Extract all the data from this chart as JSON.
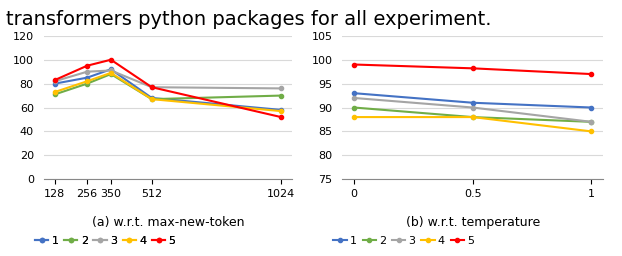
{
  "left": {
    "x": [
      128,
      256,
      350,
      512,
      1024
    ],
    "lines": {
      "1": [
        80,
        85,
        92,
        68,
        58
      ],
      "2": [
        71,
        80,
        88,
        67,
        70
      ],
      "3": [
        82,
        90,
        91,
        77,
        76
      ],
      "4": [
        73,
        82,
        89,
        67,
        57
      ],
      "5": [
        83,
        95,
        100,
        77,
        52
      ]
    },
    "colors": {
      "1": "#4472C4",
      "2": "#70AD47",
      "3": "#A5A5A5",
      "4": "#FFC000",
      "5": "#FF0000"
    },
    "ylim": [
      0,
      120
    ],
    "yticks": [
      0,
      20,
      40,
      60,
      80,
      100,
      120
    ],
    "caption": "(a) w.r.t. max-new-token"
  },
  "right": {
    "x": [
      0,
      0.5,
      1
    ],
    "lines": {
      "1": [
        93,
        91,
        90
      ],
      "2": [
        90,
        88,
        87
      ],
      "3": [
        92,
        90,
        87
      ],
      "4": [
        88,
        88,
        85
      ],
      "5": [
        99,
        98.2,
        97
      ]
    },
    "colors": {
      "1": "#4472C4",
      "2": "#70AD47",
      "3": "#A5A5A5",
      "4": "#FFC000",
      "5": "#FF0000"
    },
    "ylim": [
      75,
      105
    ],
    "yticks": [
      75,
      80,
      85,
      90,
      95,
      100,
      105
    ],
    "caption": "(b) w.r.t. temperature"
  },
  "legend_labels": [
    "1",
    "2",
    "3",
    "4",
    "5"
  ],
  "legend_colors": [
    "#4472C4",
    "#70AD47",
    "#A5A5A5",
    "#FFC000",
    "#FF0000"
  ],
  "marker": "o",
  "markersize": 3,
  "linewidth": 1.5,
  "grid_color": "#D9D9D9",
  "font_size": 8,
  "caption_font_size": 9,
  "header_text": "transformers python packages for all experiment.",
  "header_font_size": 14
}
